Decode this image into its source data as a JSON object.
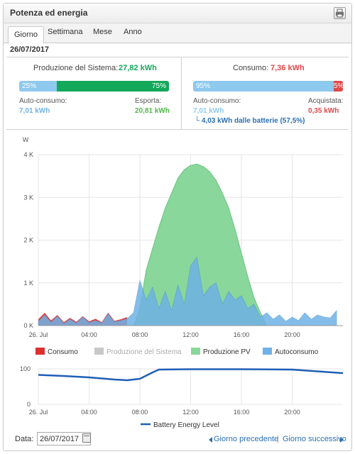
{
  "header": {
    "title": "Potenza ed energia",
    "print_icon": "print-icon"
  },
  "tabs": [
    {
      "label": "Giorno",
      "active": true
    },
    {
      "label": "Settimana",
      "active": false
    },
    {
      "label": "Mese",
      "active": false
    },
    {
      "label": "Anno",
      "active": false
    }
  ],
  "date": "26/07/2017",
  "production": {
    "label": "Produzione del Sistema:",
    "value": "27,82 kWh",
    "bar_left_pct": "25%",
    "bar_right_pct": "75%",
    "self_label": "Auto-consumo:",
    "self_value": "7,01 kWh",
    "export_label": "Esporta:",
    "export_value": "20,81 kWh"
  },
  "consumption": {
    "label": "Consumo:",
    "value": "7,36 kWh",
    "bar_left_pct": "95%",
    "bar_right_pct": "5%",
    "self_label": "Auto-consumo:",
    "self_value": "7,01 kWh",
    "bought_label": "Acquistata:",
    "bought_value": "0,35 kWh",
    "battery_note": "└ 4,03 kWh dalle batterie (57,5%)"
  },
  "colors": {
    "consumption": "#d9312f",
    "production_system": "#c8c8c8",
    "pv": "#89d79b",
    "self_consumption": "#6fb2e6",
    "battery_line": "#1f5fb6",
    "green": "#13a85a",
    "blue_light": "#8ec9ee",
    "red": "#e04848"
  },
  "footer": {
    "date_label": "Data:",
    "date_value": "26/07/2017",
    "prev_label": "Giorno precedente",
    "next_label": "Giorno successivo"
  },
  "chart_data": [
    {
      "type": "area",
      "ylabel": "W",
      "x_ticks": [
        "26. Jul",
        "04:00",
        "08:00",
        "12:00",
        "16:00",
        "20:00"
      ],
      "y_ticks": [
        "0 K",
        "1 K",
        "2 K",
        "3 K",
        "4 K"
      ],
      "ylim": [
        0,
        4000
      ],
      "xlim_hours": [
        0,
        24
      ],
      "grid": true,
      "legend_position": "bottom",
      "series": [
        {
          "name": "Consumo",
          "points": [
            [
              0,
              150
            ],
            [
              0.5,
              300
            ],
            [
              1,
              120
            ],
            [
              1.5,
              250
            ],
            [
              2,
              80
            ],
            [
              2.5,
              180
            ],
            [
              3,
              90
            ],
            [
              3.5,
              220
            ],
            [
              4,
              100
            ],
            [
              4.5,
              160
            ],
            [
              5,
              80
            ],
            [
              5.5,
              300
            ],
            [
              6,
              110
            ],
            [
              6.5,
              150
            ],
            [
              7,
              200
            ]
          ]
        },
        {
          "name": "Produzione del Sistema",
          "points": []
        },
        {
          "name": "Produzione PV",
          "points": [
            [
              7.5,
              0
            ],
            [
              8,
              400
            ],
            [
              8.5,
              1300
            ],
            [
              9,
              1800
            ],
            [
              9.5,
              2300
            ],
            [
              10,
              2750
            ],
            [
              10.5,
              3100
            ],
            [
              11,
              3450
            ],
            [
              11.5,
              3650
            ],
            [
              12,
              3750
            ],
            [
              12.5,
              3780
            ],
            [
              13,
              3720
            ],
            [
              13.5,
              3600
            ],
            [
              14,
              3400
            ],
            [
              14.5,
              3100
            ],
            [
              15,
              2750
            ],
            [
              15.5,
              2250
            ],
            [
              16,
              1700
            ],
            [
              16.5,
              1150
            ],
            [
              17,
              650
            ],
            [
              17.5,
              300
            ],
            [
              18,
              0
            ]
          ]
        },
        {
          "name": "Autoconsumo",
          "points": [
            [
              0,
              100
            ],
            [
              0.5,
              250
            ],
            [
              1,
              80
            ],
            [
              1.5,
              220
            ],
            [
              2,
              50
            ],
            [
              2.5,
              150
            ],
            [
              3,
              60
            ],
            [
              3.5,
              200
            ],
            [
              4,
              70
            ],
            [
              4.5,
              120
            ],
            [
              5,
              60
            ],
            [
              5.5,
              270
            ],
            [
              6,
              90
            ],
            [
              6.5,
              120
            ],
            [
              7,
              160
            ],
            [
              7.5,
              300
            ],
            [
              8,
              1050
            ],
            [
              8.5,
              600
            ],
            [
              9,
              900
            ],
            [
              9.5,
              400
            ],
            [
              10,
              800
            ],
            [
              10.5,
              350
            ],
            [
              11,
              950
            ],
            [
              11.5,
              500
            ],
            [
              12,
              1400
            ],
            [
              12.5,
              1600
            ],
            [
              13,
              700
            ],
            [
              13.5,
              900
            ],
            [
              14,
              1000
            ],
            [
              14.5,
              500
            ],
            [
              15,
              800
            ],
            [
              15.5,
              600
            ],
            [
              16,
              700
            ],
            [
              16.5,
              400
            ],
            [
              17,
              500
            ],
            [
              17.5,
              200
            ],
            [
              18,
              300
            ],
            [
              18.5,
              150
            ],
            [
              19,
              250
            ],
            [
              19.5,
              100
            ],
            [
              20,
              200
            ],
            [
              20.5,
              120
            ],
            [
              21,
              300
            ],
            [
              21.5,
              150
            ],
            [
              22,
              250
            ],
            [
              22.5,
              200
            ],
            [
              23,
              180
            ],
            [
              23.5,
              350
            ]
          ]
        }
      ]
    },
    {
      "type": "line",
      "x_ticks": [
        "26. Jul",
        "04:00",
        "08:00",
        "12:00",
        "16:00",
        "20:00"
      ],
      "y_ticks": [
        "0",
        "100"
      ],
      "ylim": [
        0,
        100
      ],
      "xlim_hours": [
        0,
        24
      ],
      "legend_position": "bottom",
      "series": [
        {
          "name": "Battery Energy Level",
          "points": [
            [
              0,
              83
            ],
            [
              2,
              80
            ],
            [
              4,
              76
            ],
            [
              6,
              70
            ],
            [
              7,
              68
            ],
            [
              8,
              72
            ],
            [
              9,
              90
            ],
            [
              9.5,
              98
            ],
            [
              12,
              99
            ],
            [
              16,
              99
            ],
            [
              20,
              98
            ],
            [
              22,
              93
            ],
            [
              24,
              88
            ]
          ]
        }
      ]
    }
  ]
}
